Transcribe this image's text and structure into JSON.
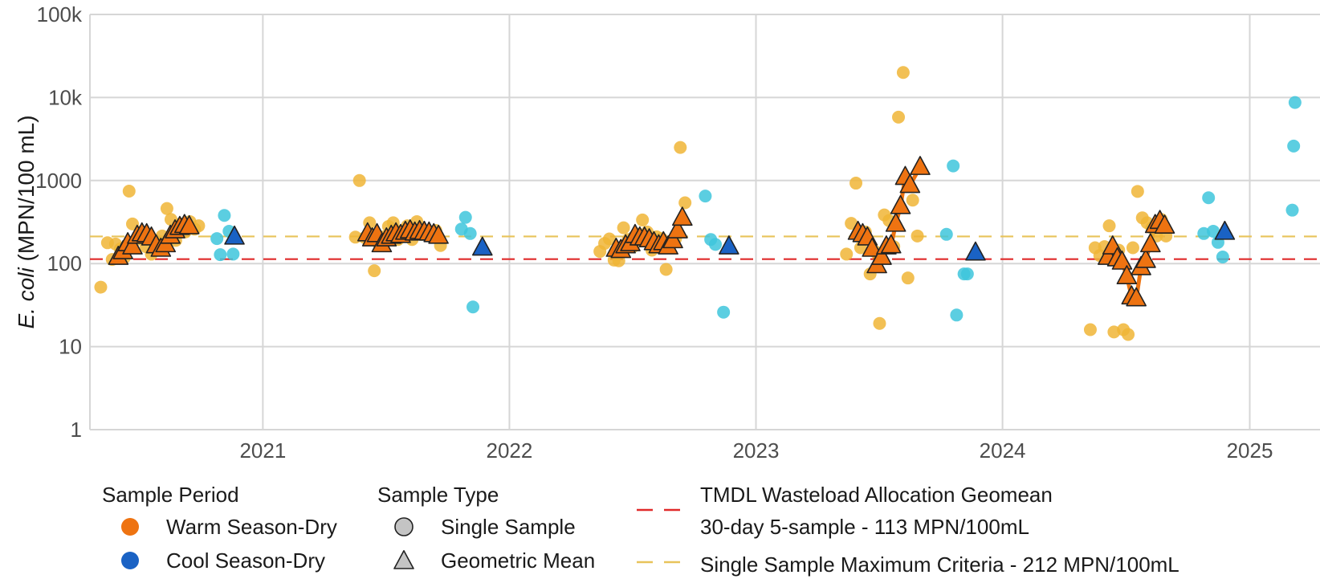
{
  "chart_data": {
    "type": "scatter",
    "y_scale": "log",
    "ylim": [
      1,
      100000
    ],
    "xlim": [
      "2020-04-20",
      "2025-04-15"
    ],
    "y_ticks": [
      1,
      10,
      100,
      1000,
      10000,
      100000
    ],
    "y_tick_labels": [
      "1",
      "10",
      "100",
      "1000",
      "10k",
      "100k"
    ],
    "x_ticks": [
      "2021-01-01",
      "2022-01-01",
      "2023-01-01",
      "2024-01-01",
      "2025-01-01"
    ],
    "x_tick_labels": [
      "2021",
      "2022",
      "2023",
      "2024",
      "2025"
    ],
    "ylabel_italic": "E. coli",
    "ylabel_rest": "(MPN/100 mL)",
    "grid": true,
    "reference_lines": [
      {
        "value": 113,
        "color": "#e02a2a",
        "style": "dashed"
      },
      {
        "value": 212,
        "color": "#e8c35a",
        "style": "dashed"
      }
    ],
    "colors": {
      "warm_single": "#f0b536",
      "cool_single": "#3ec6dc",
      "warm_geomean": "#ee7311",
      "cool_geomean": "#1a62c4",
      "warm_line": "#ee7311",
      "marker_outline": "#222222"
    },
    "series": [
      {
        "name": "Warm Season-Dry · Single Sample",
        "period": "warm",
        "sample_type": "single",
        "points": [
          [
            "2020-05-06",
            52
          ],
          [
            "2020-05-16",
            178
          ],
          [
            "2020-05-23",
            112
          ],
          [
            "2020-05-28",
            172
          ],
          [
            "2020-06-04",
            150
          ],
          [
            "2020-06-10",
            118
          ],
          [
            "2020-06-17",
            745
          ],
          [
            "2020-06-22",
            300
          ],
          [
            "2020-06-28",
            195
          ],
          [
            "2020-07-05",
            240
          ],
          [
            "2020-07-12",
            160
          ],
          [
            "2020-07-20",
            130
          ],
          [
            "2020-07-28",
            180
          ],
          [
            "2020-08-05",
            215
          ],
          [
            "2020-08-12",
            460
          ],
          [
            "2020-08-18",
            340
          ],
          [
            "2020-08-25",
            190
          ],
          [
            "2020-09-01",
            300
          ],
          [
            "2020-09-08",
            240
          ],
          [
            "2020-09-15",
            320
          ],
          [
            "2020-09-22",
            260
          ],
          [
            "2020-09-28",
            285
          ],
          [
            "2021-05-18",
            208
          ],
          [
            "2021-05-24",
            1000
          ],
          [
            "2021-06-01",
            205
          ],
          [
            "2021-06-08",
            310
          ],
          [
            "2021-06-15",
            82
          ],
          [
            "2021-06-22",
            172
          ],
          [
            "2021-06-29",
            210
          ],
          [
            "2021-07-06",
            280
          ],
          [
            "2021-07-13",
            310
          ],
          [
            "2021-07-20",
            195
          ],
          [
            "2021-07-27",
            250
          ],
          [
            "2021-08-03",
            285
          ],
          [
            "2021-08-10",
            195
          ],
          [
            "2021-08-17",
            320
          ],
          [
            "2021-08-24",
            225
          ],
          [
            "2021-08-31",
            240
          ],
          [
            "2021-09-07",
            215
          ],
          [
            "2021-09-14",
            250
          ],
          [
            "2021-09-21",
            165
          ],
          [
            "2022-05-15",
            140
          ],
          [
            "2022-05-22",
            175
          ],
          [
            "2022-05-29",
            198
          ],
          [
            "2022-06-05",
            110
          ],
          [
            "2022-06-12",
            108
          ],
          [
            "2022-06-19",
            270
          ],
          [
            "2022-06-26",
            195
          ],
          [
            "2022-07-03",
            160
          ],
          [
            "2022-07-10",
            225
          ],
          [
            "2022-07-17",
            335
          ],
          [
            "2022-07-24",
            240
          ],
          [
            "2022-07-31",
            145
          ],
          [
            "2022-08-07",
            210
          ],
          [
            "2022-08-14",
            200
          ],
          [
            "2022-08-21",
            85
          ],
          [
            "2022-08-28",
            170
          ],
          [
            "2022-09-04",
            200
          ],
          [
            "2022-09-11",
            2500
          ],
          [
            "2022-09-18",
            540
          ],
          [
            "2023-05-15",
            130
          ],
          [
            "2023-05-22",
            305
          ],
          [
            "2023-05-29",
            930
          ],
          [
            "2023-06-05",
            155
          ],
          [
            "2023-06-12",
            240
          ],
          [
            "2023-06-19",
            75
          ],
          [
            "2023-06-26",
            140
          ],
          [
            "2023-07-03",
            19
          ],
          [
            "2023-07-10",
            385
          ],
          [
            "2023-07-17",
            330
          ],
          [
            "2023-07-24",
            160
          ],
          [
            "2023-07-31",
            5800
          ],
          [
            "2023-08-07",
            20000
          ],
          [
            "2023-08-14",
            67
          ],
          [
            "2023-08-21",
            580
          ],
          [
            "2023-08-28",
            215
          ],
          [
            "2024-05-10",
            16
          ],
          [
            "2024-05-17",
            155
          ],
          [
            "2024-05-24",
            125
          ],
          [
            "2024-05-31",
            160
          ],
          [
            "2024-06-07",
            285
          ],
          [
            "2024-06-14",
            15
          ],
          [
            "2024-06-21",
            145
          ],
          [
            "2024-06-28",
            16
          ],
          [
            "2024-07-05",
            14
          ],
          [
            "2024-07-12",
            155
          ],
          [
            "2024-07-19",
            740
          ],
          [
            "2024-07-26",
            355
          ],
          [
            "2024-08-02",
            310
          ],
          [
            "2024-08-09",
            270
          ],
          [
            "2024-08-16",
            215
          ],
          [
            "2024-08-23",
            340
          ],
          [
            "2024-08-30",
            215
          ]
        ]
      },
      {
        "name": "Cool Season-Dry · Single Sample",
        "period": "cool",
        "sample_type": "single",
        "points": [
          [
            "2020-10-25",
            200
          ],
          [
            "2020-10-30",
            128
          ],
          [
            "2020-11-05",
            380
          ],
          [
            "2020-11-12",
            245
          ],
          [
            "2020-11-18",
            130
          ],
          [
            "2021-10-22",
            260
          ],
          [
            "2021-10-28",
            360
          ],
          [
            "2021-11-04",
            230
          ],
          [
            "2021-11-08",
            30
          ],
          [
            "2022-10-18",
            650
          ],
          [
            "2022-10-26",
            195
          ],
          [
            "2022-11-02",
            170
          ],
          [
            "2022-11-14",
            26
          ],
          [
            "2023-10-20",
            1500
          ],
          [
            "2023-10-10",
            225
          ],
          [
            "2023-10-25",
            24
          ],
          [
            "2023-11-05",
            75
          ],
          [
            "2023-11-10",
            75
          ],
          [
            "2024-10-25",
            230
          ],
          [
            "2024-11-01",
            620
          ],
          [
            "2024-11-08",
            245
          ],
          [
            "2024-11-15",
            180
          ],
          [
            "2024-11-22",
            120
          ],
          [
            "2025-03-05",
            440
          ],
          [
            "2025-03-07",
            2600
          ],
          [
            "2025-03-09",
            8700
          ]
        ]
      },
      {
        "name": "Warm Season-Dry · Geometric Mean",
        "period": "warm",
        "sample_type": "geomean",
        "connected": true,
        "segments": [
          [
            [
              "2020-06-01",
              120
            ],
            [
              "2020-06-08",
              140
            ],
            [
              "2020-06-15",
              175
            ],
            [
              "2020-06-22",
              160
            ],
            [
              "2020-06-29",
              215
            ],
            [
              "2020-07-06",
              230
            ],
            [
              "2020-07-13",
              225
            ],
            [
              "2020-07-20",
              205
            ],
            [
              "2020-07-27",
              165
            ],
            [
              "2020-08-03",
              150
            ],
            [
              "2020-08-10",
              170
            ],
            [
              "2020-08-17",
              215
            ],
            [
              "2020-08-24",
              250
            ],
            [
              "2020-08-31",
              275
            ],
            [
              "2020-09-07",
              290
            ],
            [
              "2020-09-14",
              280
            ]
          ],
          [
            [
              "2021-06-05",
              230
            ],
            [
              "2021-06-12",
              200
            ],
            [
              "2021-06-19",
              225
            ],
            [
              "2021-06-26",
              170
            ],
            [
              "2021-07-03",
              200
            ],
            [
              "2021-07-10",
              215
            ],
            [
              "2021-07-17",
              230
            ],
            [
              "2021-07-24",
              220
            ],
            [
              "2021-07-31",
              240
            ],
            [
              "2021-08-07",
              250
            ],
            [
              "2021-08-14",
              235
            ],
            [
              "2021-08-21",
              245
            ],
            [
              "2021-08-28",
              240
            ],
            [
              "2021-09-04",
              235
            ],
            [
              "2021-09-11",
              225
            ],
            [
              "2021-09-18",
              215
            ]
          ],
          [
            [
              "2022-06-08",
              150
            ],
            [
              "2022-06-15",
              145
            ],
            [
              "2022-06-22",
              165
            ],
            [
              "2022-06-29",
              175
            ],
            [
              "2022-07-06",
              220
            ],
            [
              "2022-07-13",
              205
            ],
            [
              "2022-07-20",
              205
            ],
            [
              "2022-07-27",
              195
            ],
            [
              "2022-08-03",
              180
            ],
            [
              "2022-08-10",
              165
            ],
            [
              "2022-08-17",
              180
            ],
            [
              "2022-08-24",
              160
            ],
            [
              "2022-08-31",
              190
            ],
            [
              "2022-09-07",
              250
            ],
            [
              "2022-09-14",
              355
            ]
          ],
          [
            [
              "2023-06-01",
              240
            ],
            [
              "2023-06-08",
              225
            ],
            [
              "2023-06-15",
              205
            ],
            [
              "2023-06-22",
              150
            ],
            [
              "2023-06-29",
              95
            ],
            [
              "2023-07-06",
              120
            ],
            [
              "2023-07-13",
              160
            ],
            [
              "2023-07-20",
              165
            ],
            [
              "2023-07-27",
              300
            ],
            [
              "2023-08-03",
              490
            ],
            [
              "2023-08-10",
              1100
            ],
            [
              "2023-08-17",
              880
            ],
            [
              "2023-09-01",
              1450
            ]
          ],
          [
            [
              "2024-06-05",
              120
            ],
            [
              "2024-06-12",
              160
            ],
            [
              "2024-06-19",
              115
            ],
            [
              "2024-06-26",
              105
            ],
            [
              "2024-07-03",
              70
            ],
            [
              "2024-07-10",
              40
            ],
            [
              "2024-07-17",
              38
            ],
            [
              "2024-07-24",
              90
            ],
            [
              "2024-07-31",
              110
            ],
            [
              "2024-08-07",
              170
            ],
            [
              "2024-08-14",
              290
            ],
            [
              "2024-08-21",
              325
            ],
            [
              "2024-08-28",
              285
            ]
          ]
        ]
      },
      {
        "name": "Cool Season-Dry · Geometric Mean",
        "period": "cool",
        "sample_type": "geomean",
        "points": [
          [
            "2020-11-20",
            210
          ],
          [
            "2021-11-22",
            155
          ],
          [
            "2022-11-22",
            160
          ],
          [
            "2023-11-22",
            135
          ],
          [
            "2024-11-25",
            240
          ]
        ]
      }
    ],
    "legend": {
      "period": {
        "title": "Sample Period",
        "items": [
          {
            "label": "Warm Season-Dry",
            "color": "#ee7311"
          },
          {
            "label": "Cool Season-Dry",
            "color": "#1a62c4"
          }
        ]
      },
      "sample_type": {
        "title": "Sample Type",
        "items": [
          {
            "label": "Single Sample",
            "shape": "circle"
          },
          {
            "label": "Geometric Mean",
            "shape": "triangle"
          }
        ]
      },
      "lines": [
        {
          "lines": [
            "TMDL Wasteload Allocation Geomean",
            "30-day 5-sample - 113 MPN/100mL"
          ],
          "color": "#e02a2a"
        },
        {
          "lines": [
            "Single Sample Maximum Criteria - 212 MPN/100mL"
          ],
          "color": "#e8c35a"
        }
      ]
    }
  }
}
